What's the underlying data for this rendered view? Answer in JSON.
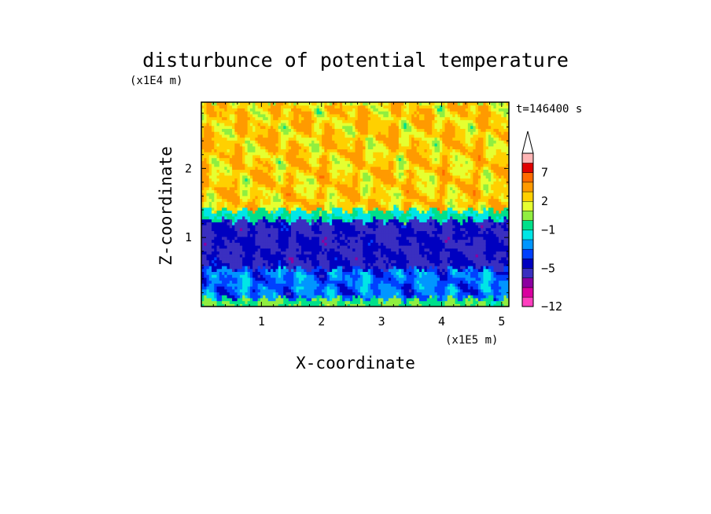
{
  "chart_data": {
    "type": "heatmap",
    "title": "disturbunce of potential temperature",
    "xlabel": "X-coordinate",
    "ylabel": "Z-coordinate",
    "x_unit": "(x1E5 m)",
    "y_unit": "(x1E4 m)",
    "time_label": "t=146400 s",
    "xlim": [
      0,
      5.12
    ],
    "ylim": [
      0,
      2.96
    ],
    "x_ticks": [
      "1",
      "2",
      "3",
      "4",
      "5"
    ],
    "y_ticks": [
      "1",
      "2"
    ],
    "colorbar": {
      "labels": [
        "-12",
        "-5",
        "-1",
        "2",
        "7"
      ],
      "levels": [
        -12,
        -10,
        -8,
        -6,
        -5,
        -4,
        -3,
        -2,
        -1,
        0,
        1,
        2,
        3,
        5,
        7,
        9,
        11
      ],
      "colors": [
        "#ff3fbf",
        "#d9009f",
        "#8c00a0",
        "#3a2fc0",
        "#0000c0",
        "#0040ff",
        "#0096ff",
        "#00e6e6",
        "#00e08a",
        "#90ee40",
        "#e6ff30",
        "#ffd000",
        "#ff9a00",
        "#ff6a00",
        "#e00000",
        "#ffb5b5"
      ]
    },
    "layers": [
      {
        "z_range": [
          0,
          0.12
        ],
        "value_range": [
          -1,
          1
        ]
      },
      {
        "z_range": [
          0.12,
          0.55
        ],
        "value_range": [
          -5,
          -1
        ]
      },
      {
        "z_range": [
          0.55,
          1.25
        ],
        "value_range": [
          -6,
          -4
        ]
      },
      {
        "z_range": [
          1.25,
          1.4
        ],
        "value_range": [
          -2,
          0
        ]
      },
      {
        "z_range": [
          1.4,
          2.96
        ],
        "value_range": [
          0,
          5
        ]
      }
    ]
  }
}
